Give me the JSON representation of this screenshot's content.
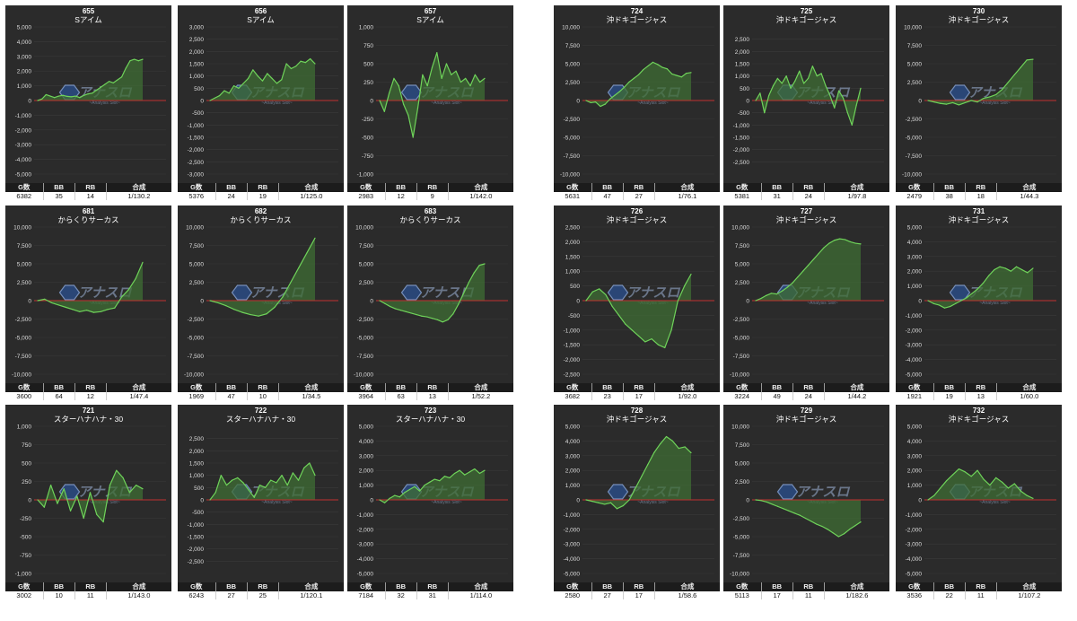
{
  "stat_labels": {
    "g": "G数",
    "bb": "BB",
    "rb": "RB",
    "rate": "合成"
  },
  "colors": {
    "panel_bg": "#2b2b2b",
    "line": "#6fd35a",
    "fill": "#3f6e34",
    "zero_line": "#c03030",
    "grid": "#3a3a3a",
    "tick_text": "#dddddd"
  },
  "watermark": {
    "main": "アナスロ",
    "sub": "~Analysis Slot~"
  },
  "chart_data": [
    {
      "type": "line",
      "title": "655",
      "subtitle": "Sアイム",
      "ylim": [
        -5000,
        5000
      ],
      "yticks": [
        5000,
        4000,
        3000,
        2000,
        1000,
        0,
        -1000,
        -2000,
        -3000,
        -4000,
        -5000
      ],
      "values": [
        0,
        100,
        400,
        300,
        200,
        300,
        350,
        280,
        250,
        300,
        200,
        350,
        450,
        500,
        700,
        900,
        1100,
        1300,
        1200,
        1400,
        1600,
        2200,
        2700,
        2800,
        2700,
        2800
      ],
      "stats": {
        "g": "6382",
        "bb": "35",
        "rb": "14",
        "rate": "1/130.2"
      }
    },
    {
      "type": "line",
      "title": "656",
      "subtitle": "Sアイム",
      "ylim": [
        -3000,
        3000
      ],
      "yticks": [
        3000,
        2500,
        2000,
        1500,
        1000,
        500,
        0,
        -500,
        -1000,
        -1500,
        -2000,
        -2500,
        -3000
      ],
      "values": [
        0,
        100,
        200,
        400,
        300,
        600,
        500,
        700,
        900,
        1250,
        1000,
        800,
        1100,
        900,
        700,
        850,
        1500,
        1300,
        1400,
        1600,
        1550,
        1700,
        1500
      ],
      "stats": {
        "g": "5376",
        "bb": "24",
        "rb": "19",
        "rate": "1/125.0"
      }
    },
    {
      "type": "line",
      "title": "657",
      "subtitle": "Sアイム",
      "ylim": [
        -1000,
        1000
      ],
      "yticks": [
        1000,
        750,
        500,
        250,
        0,
        -250,
        -500,
        -750,
        -1000
      ],
      "values": [
        0,
        -150,
        100,
        300,
        200,
        -50,
        -200,
        -500,
        -100,
        350,
        200,
        450,
        650,
        300,
        500,
        350,
        400,
        250,
        300,
        200,
        350,
        250,
        300
      ],
      "stats": {
        "g": "2983",
        "bb": "12",
        "rb": "9",
        "rate": "1/142.0"
      }
    },
    {
      "type": "line",
      "title": "724",
      "subtitle": "沖ドキゴージャス",
      "ylim": [
        -10000,
        10000
      ],
      "yticks": [
        10000,
        7500,
        5000,
        2500,
        0,
        -2500,
        -5000,
        -7500,
        -10000
      ],
      "values": [
        0,
        -300,
        -200,
        -800,
        -500,
        200,
        700,
        1200,
        1800,
        2500,
        3000,
        3500,
        4200,
        4700,
        5200,
        4900,
        4500,
        4300,
        3600,
        3400,
        3200,
        3700,
        3800
      ],
      "stats": {
        "g": "5631",
        "bb": "47",
        "rb": "27",
        "rate": "1/76.1"
      }
    },
    {
      "type": "line",
      "title": "725",
      "subtitle": "沖ドキゴージャス",
      "ylim": [
        -3000,
        3000
      ],
      "yticks": [
        2500,
        2000,
        1500,
        1000,
        500,
        0,
        -500,
        -1000,
        -1500,
        -2000,
        -2500
      ],
      "values": [
        0,
        300,
        -500,
        200,
        600,
        900,
        700,
        1000,
        500,
        800,
        1200,
        700,
        900,
        1400,
        1000,
        1100,
        600,
        200,
        -300,
        400,
        100,
        -500,
        -1000,
        -200,
        500
      ],
      "stats": {
        "g": "5381",
        "bb": "31",
        "rb": "24",
        "rate": "1/97.8"
      }
    },
    {
      "type": "line",
      "title": "730",
      "subtitle": "沖ドキゴージャス",
      "ylim": [
        -10000,
        10000
      ],
      "yticks": [
        10000,
        7500,
        5000,
        2500,
        0,
        -2500,
        -5000,
        -7500,
        -10000
      ],
      "values": [
        0,
        -200,
        -400,
        -500,
        -300,
        -600,
        -300,
        0,
        -200,
        300,
        500,
        800,
        1500,
        2500,
        3500,
        4500,
        5500,
        5600
      ],
      "stats": {
        "g": "2479",
        "bb": "38",
        "rb": "18",
        "rate": "1/44.3"
      }
    },
    {
      "type": "line",
      "title": "681",
      "subtitle": "からくりサーカス",
      "ylim": [
        -10000,
        10000
      ],
      "yticks": [
        10000,
        7500,
        5000,
        2500,
        0,
        -2500,
        -5000,
        -7500,
        -10000
      ],
      "values": [
        0,
        200,
        -300,
        -600,
        -900,
        -1200,
        -1500,
        -1300,
        -1600,
        -1500,
        -1200,
        -1000,
        500,
        1500,
        3000,
        5200
      ],
      "stats": {
        "g": "3600",
        "bb": "64",
        "rb": "12",
        "rate": "1/47.4"
      }
    },
    {
      "type": "line",
      "title": "682",
      "subtitle": "からくりサーカス",
      "ylim": [
        -10000,
        10000
      ],
      "yticks": [
        10000,
        7500,
        5000,
        2500,
        0,
        -2500,
        -5000,
        -7500,
        -10000
      ],
      "values": [
        0,
        -300,
        -700,
        -1200,
        -1600,
        -1900,
        -2100,
        -1800,
        -900,
        500,
        2500,
        4500,
        6500,
        8500
      ],
      "stats": {
        "g": "1969",
        "bb": "47",
        "rb": "10",
        "rate": "1/34.5"
      }
    },
    {
      "type": "line",
      "title": "683",
      "subtitle": "からくりサーカス",
      "ylim": [
        -10000,
        10000
      ],
      "yticks": [
        10000,
        7500,
        5000,
        2500,
        0,
        -2500,
        -5000,
        -7500,
        -10000
      ],
      "values": [
        0,
        -400,
        -800,
        -1100,
        -1300,
        -1500,
        -1700,
        -1900,
        -2100,
        -2200,
        -2400,
        -2600,
        -2900,
        -2600,
        -1800,
        -500,
        1000,
        2500,
        3800,
        4800,
        5000
      ],
      "stats": {
        "g": "3964",
        "bb": "63",
        "rb": "13",
        "rate": "1/52.2"
      }
    },
    {
      "type": "line",
      "title": "726",
      "subtitle": "沖ドキゴージャス",
      "ylim": [
        -2500,
        2500
      ],
      "yticks": [
        2500,
        2000,
        1500,
        1000,
        500,
        0,
        -500,
        -1000,
        -1500,
        -2000,
        -2500
      ],
      "values": [
        0,
        300,
        400,
        200,
        -200,
        -500,
        -800,
        -1000,
        -1200,
        -1400,
        -1300,
        -1500,
        -1600,
        -1000,
        0,
        500,
        900
      ],
      "stats": {
        "g": "3682",
        "bb": "23",
        "rb": "17",
        "rate": "1/92.0"
      }
    },
    {
      "type": "line",
      "title": "727",
      "subtitle": "沖ドキゴージャス",
      "ylim": [
        -10000,
        10000
      ],
      "yticks": [
        10000,
        7500,
        5000,
        2500,
        0,
        -2500,
        -5000,
        -7500,
        -10000
      ],
      "values": [
        0,
        300,
        700,
        1000,
        900,
        1300,
        1800,
        2400,
        3200,
        4000,
        4800,
        5600,
        6400,
        7200,
        7800,
        8200,
        8400,
        8300,
        8000,
        7800,
        7700
      ],
      "stats": {
        "g": "3224",
        "bb": "49",
        "rb": "24",
        "rate": "1/44.2"
      }
    },
    {
      "type": "line",
      "title": "731",
      "subtitle": "沖ドキゴージャス",
      "ylim": [
        -5000,
        5000
      ],
      "yticks": [
        5000,
        4000,
        3000,
        2000,
        1000,
        0,
        -1000,
        -2000,
        -3000,
        -4000,
        -5000
      ],
      "values": [
        0,
        -200,
        -300,
        -500,
        -400,
        -200,
        0,
        200,
        500,
        800,
        1200,
        1700,
        2100,
        2300,
        2200,
        2000,
        2300,
        2100,
        1900,
        2200
      ],
      "stats": {
        "g": "1921",
        "bb": "19",
        "rb": "13",
        "rate": "1/60.0"
      }
    },
    {
      "type": "line",
      "title": "721",
      "subtitle": "スターハナハナ・30",
      "ylim": [
        -1000,
        1000
      ],
      "yticks": [
        1000,
        750,
        500,
        250,
        0,
        -250,
        -500,
        -750,
        -1000
      ],
      "values": [
        0,
        -100,
        200,
        -50,
        150,
        -150,
        50,
        -250,
        100,
        -200,
        -300,
        200,
        400,
        300,
        100,
        200,
        150
      ],
      "stats": {
        "g": "3002",
        "bb": "10",
        "rb": "11",
        "rate": "1/143.0"
      }
    },
    {
      "type": "line",
      "title": "722",
      "subtitle": "スターハナハナ・30",
      "ylim": [
        -3000,
        3000
      ],
      "yticks": [
        2500,
        2000,
        1500,
        1000,
        500,
        0,
        -500,
        -1000,
        -1500,
        -2000,
        -2500
      ],
      "values": [
        0,
        300,
        1000,
        600,
        800,
        900,
        700,
        400,
        100,
        600,
        500,
        800,
        700,
        1000,
        600,
        1100,
        800,
        1300,
        1500,
        1000
      ],
      "stats": {
        "g": "6243",
        "bb": "27",
        "rb": "25",
        "rate": "1/120.1"
      }
    },
    {
      "type": "line",
      "title": "723",
      "subtitle": "スターハナハナ・30",
      "ylim": [
        -5000,
        5000
      ],
      "yticks": [
        5000,
        4000,
        3000,
        2000,
        1000,
        0,
        -1000,
        -2000,
        -3000,
        -4000,
        -5000
      ],
      "values": [
        0,
        -200,
        100,
        300,
        200,
        500,
        700,
        900,
        600,
        1000,
        1200,
        1400,
        1300,
        1600,
        1500,
        1800,
        2000,
        1700,
        1900,
        2100,
        1800,
        2000
      ],
      "stats": {
        "g": "7184",
        "bb": "32",
        "rb": "31",
        "rate": "1/114.0"
      }
    },
    {
      "type": "line",
      "title": "728",
      "subtitle": "沖ドキゴージャス",
      "ylim": [
        -5000,
        5000
      ],
      "yticks": [
        5000,
        4000,
        3000,
        2000,
        1000,
        0,
        -1000,
        -2000,
        -3000,
        -4000,
        -5000
      ],
      "values": [
        0,
        -100,
        -200,
        -300,
        -200,
        -600,
        -400,
        0,
        800,
        1600,
        2400,
        3200,
        3800,
        4300,
        4000,
        3500,
        3600,
        3200
      ],
      "stats": {
        "g": "2580",
        "bb": "27",
        "rb": "17",
        "rate": "1/58.6"
      }
    },
    {
      "type": "line",
      "title": "729",
      "subtitle": "沖ドキゴージャス",
      "ylim": [
        -10000,
        10000
      ],
      "yticks": [
        10000,
        7500,
        5000,
        2500,
        0,
        -2500,
        -5000,
        -7500,
        -10000
      ],
      "values": [
        0,
        -100,
        -300,
        -600,
        -900,
        -1200,
        -1500,
        -1800,
        -2100,
        -2500,
        -2900,
        -3300,
        -3600,
        -4000,
        -4500,
        -5000,
        -4600,
        -4000,
        -3500,
        -3000
      ],
      "stats": {
        "g": "5113",
        "bb": "17",
        "rb": "11",
        "rate": "1/182.6"
      }
    },
    {
      "type": "line",
      "title": "732",
      "subtitle": "沖ドキゴージャス",
      "ylim": [
        -5000,
        5000
      ],
      "yticks": [
        5000,
        4000,
        3000,
        2000,
        1000,
        0,
        -1000,
        -2000,
        -3000,
        -4000,
        -5000
      ],
      "values": [
        0,
        300,
        800,
        1300,
        1700,
        2100,
        1900,
        1600,
        2000,
        1400,
        1000,
        1500,
        1200,
        800,
        1100,
        600,
        300,
        100
      ],
      "stats": {
        "g": "3536",
        "bb": "22",
        "rb": "11",
        "rate": "1/107.2"
      }
    }
  ]
}
